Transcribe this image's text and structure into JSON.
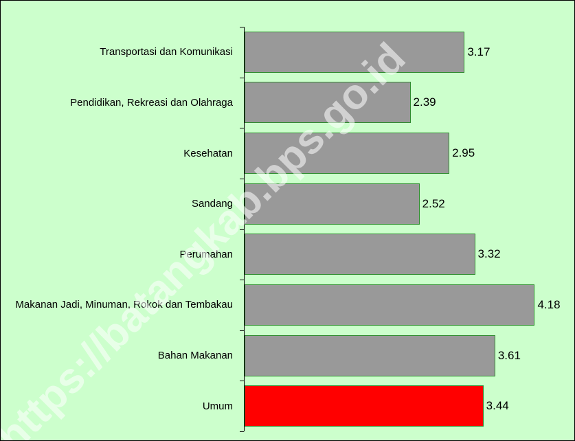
{
  "chart_data": {
    "type": "barh",
    "categories": [
      "Transportasi dan Komunikasi",
      "Pendidikan, Rekreasi dan Olahraga",
      "Kesehatan",
      "Sandang",
      "Perumahan",
      "Makanan Jadi, Minuman, Rokok dan Tembakau",
      "Bahan Makanan",
      "Umum"
    ],
    "values": [
      3.17,
      2.39,
      2.95,
      2.52,
      3.32,
      4.18,
      3.61,
      3.44
    ],
    "colors": [
      "#999999",
      "#999999",
      "#999999",
      "#999999",
      "#999999",
      "#999999",
      "#999999",
      "#ff0000"
    ],
    "xlim": [
      0,
      4.7
    ],
    "watermark": "https://batangkab.bps.go.id"
  }
}
